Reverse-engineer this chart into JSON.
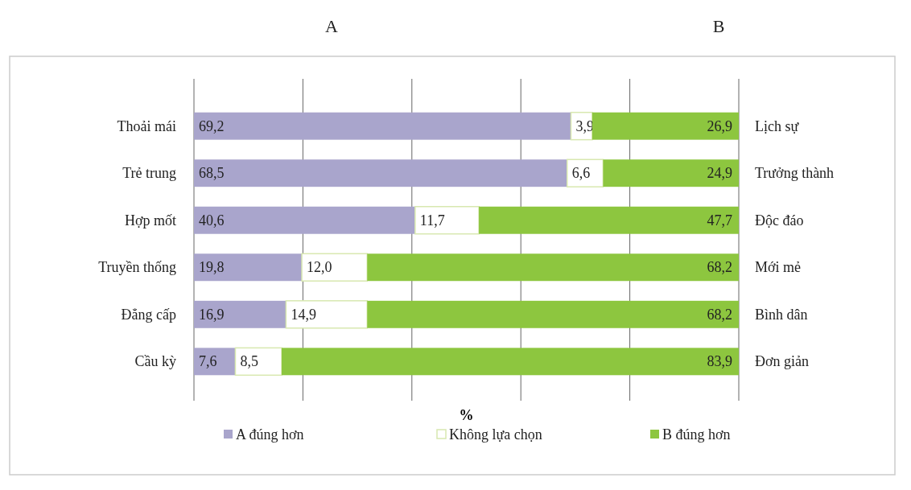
{
  "chart_data": {
    "type": "bar",
    "orientation": "horizontal",
    "stacked": true,
    "xlabel": "%",
    "categories": [
      "Thoải mái",
      "Trẻ trung",
      "Hợp mốt",
      "Truyền thống",
      "Đẳng cấp",
      "Cầu kỳ"
    ],
    "y2_categories": [
      "Lịch sự",
      "Trưởng thành",
      "Độc đáo",
      "Mới mẻ",
      "Bình dân",
      "Đơn giản"
    ],
    "series": [
      {
        "name": "A đúng hơn",
        "color": "#a9a5cc",
        "values": [
          69.2,
          68.5,
          40.6,
          19.8,
          16.9,
          7.6
        ],
        "value_labels": [
          "69,2",
          "68,5",
          "40,6",
          "19,8",
          "16,9",
          "7,6"
        ]
      },
      {
        "name": "Không lựa chọn",
        "color": "#ffffff",
        "values": [
          3.9,
          6.6,
          11.7,
          12.0,
          14.9,
          8.5
        ],
        "value_labels": [
          "3,9",
          "6,6",
          "11,7",
          "12,0",
          "14,9",
          "8,5"
        ]
      },
      {
        "name": "B đúng hơn",
        "color": "#8dc63f",
        "values": [
          26.9,
          24.9,
          47.7,
          68.2,
          68.2,
          83.9
        ],
        "value_labels": [
          "26,9",
          "24,9",
          "47,7",
          "68,2",
          "68,2",
          "83,9"
        ]
      }
    ],
    "xlim": [
      0,
      100
    ],
    "xticks": [
      {
        "value": 0,
        "label": null
      },
      {
        "value": 20,
        "label": null
      },
      {
        "value": 40,
        "label": null
      },
      {
        "value": 60,
        "label": null
      },
      {
        "value": 80,
        "label": null
      },
      {
        "value": 100,
        "label": null
      }
    ],
    "tick_labels": "y",
    "grid": "x",
    "legend": "bottom",
    "annotations": [
      "A",
      "B"
    ]
  }
}
